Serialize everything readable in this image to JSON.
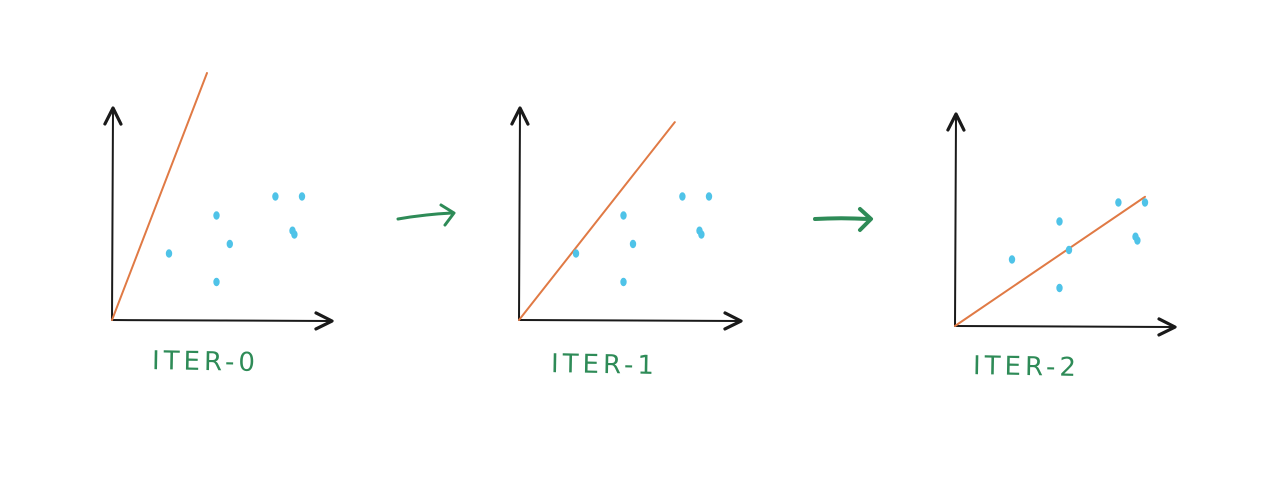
{
  "panels": [
    {
      "label": "ITER-0",
      "fit_line": {
        "intercept": 0,
        "slope": 2.6,
        "x_end": 0.5
      },
      "points": [
        [
          0.3,
          0.35
        ],
        [
          0.55,
          0.55
        ],
        [
          0.62,
          0.4
        ],
        [
          0.55,
          0.2
        ],
        [
          0.86,
          0.65
        ],
        [
          1.0,
          0.65
        ],
        [
          0.95,
          0.47
        ],
        [
          0.96,
          0.45
        ]
      ]
    },
    {
      "label": "ITER-1",
      "fit_line": {
        "intercept": 0,
        "slope": 1.27,
        "x_end": 0.82
      },
      "points": [
        [
          0.3,
          0.35
        ],
        [
          0.55,
          0.55
        ],
        [
          0.6,
          0.4
        ],
        [
          0.55,
          0.2
        ],
        [
          0.86,
          0.65
        ],
        [
          1.0,
          0.65
        ],
        [
          0.95,
          0.47
        ],
        [
          0.96,
          0.45
        ]
      ]
    },
    {
      "label": "ITER-2",
      "fit_line": {
        "intercept": 0,
        "slope": 0.68,
        "x_end": 1.0
      },
      "points": [
        [
          0.3,
          0.35
        ],
        [
          0.55,
          0.55
        ],
        [
          0.6,
          0.4
        ],
        [
          0.55,
          0.2
        ],
        [
          0.86,
          0.65
        ],
        [
          1.0,
          0.65
        ],
        [
          0.95,
          0.47
        ],
        [
          0.96,
          0.45
        ]
      ]
    }
  ],
  "arrows": [
    "right-arrow",
    "right-arrow"
  ],
  "colors": {
    "axis": "#1a1a1a",
    "fit_line": "#e07a45",
    "points": "#4fc3e8",
    "label": "#2e8b57",
    "arrow": "#2e8b57"
  }
}
